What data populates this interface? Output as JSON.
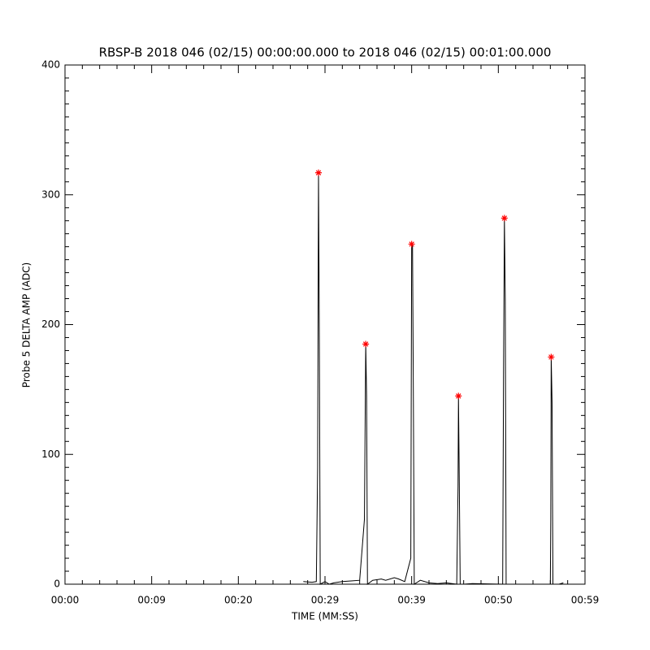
{
  "chart_data": {
    "type": "line",
    "title": "RBSP-B 2018 046 (02/15) 00:00:00.000 to 2018 046 (02/15) 00:01:00.000",
    "x_label": "TIME (MM:SS)",
    "y_label": "Probe 5 DELTA AMP (ADC)",
    "xlim": [
      0,
      60
    ],
    "ylim": [
      0,
      400
    ],
    "xticks": [
      {
        "value": 0,
        "label": "00:00"
      },
      {
        "value": 10,
        "label": "00:09"
      },
      {
        "value": 20,
        "label": "00:20"
      },
      {
        "value": 30,
        "label": "00:29"
      },
      {
        "value": 40,
        "label": "00:39"
      },
      {
        "value": 50,
        "label": "00:50"
      },
      {
        "value": 60,
        "label": "00:59"
      }
    ],
    "yticks": [
      0,
      100,
      200,
      300,
      400
    ],
    "x_minor": 5,
    "y_minor": 10,
    "series": [
      {
        "color": "#000000",
        "marker": "none",
        "x": [
          27.5,
          28.5,
          29.0,
          29.15,
          29.25,
          29.35,
          29.45,
          30.0,
          30.5,
          31.0,
          32.0,
          33.0,
          34.0,
          34.55,
          34.7,
          34.8,
          34.9,
          35.5,
          36.5,
          37.0,
          38.0,
          38.5,
          39.2,
          39.9,
          40.0,
          40.1,
          40.2,
          40.3,
          41.0,
          42.0,
          43.0,
          44.0,
          45.2,
          45.35,
          45.4,
          45.5,
          45.6,
          46.0,
          47.0,
          50.5,
          50.6,
          50.7,
          50.8,
          50.9,
          52.0,
          56.0,
          56.05,
          56.1,
          56.2,
          56.3,
          57.0,
          57.5
        ],
        "values": [
          2,
          1.5,
          2,
          90,
          317,
          185,
          0,
          2,
          0,
          1,
          2,
          2.5,
          3,
          50,
          185,
          145,
          0,
          3,
          4,
          3,
          5,
          4,
          2,
          20,
          262,
          260,
          140,
          0,
          3,
          1,
          0.5,
          1,
          0,
          75,
          145,
          75,
          0,
          0,
          0.5,
          0,
          160,
          282,
          220,
          0,
          0,
          0,
          50,
          175,
          140,
          0,
          0,
          1
        ]
      },
      {
        "color": "#ff0000",
        "marker": "asterisk",
        "x": [
          29.25,
          34.7,
          40.0,
          45.4,
          50.7,
          56.1
        ],
        "values": [
          317,
          185,
          262,
          145,
          282,
          175
        ]
      }
    ]
  }
}
